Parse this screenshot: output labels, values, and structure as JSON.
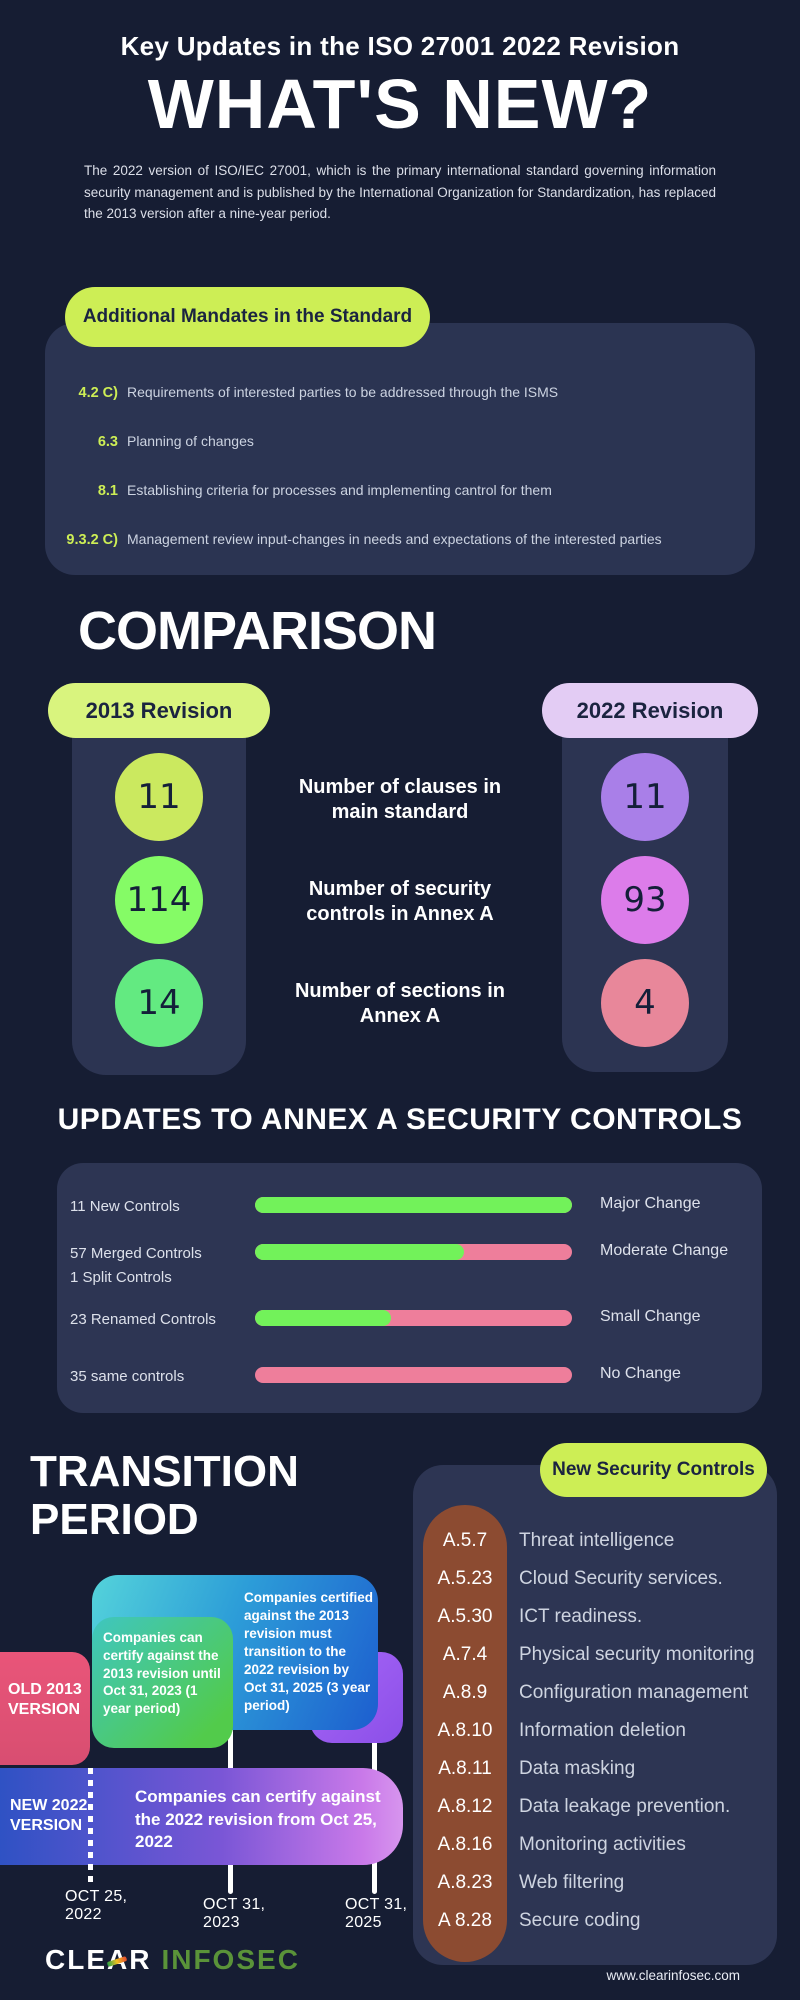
{
  "colors": {
    "background": "#161d33",
    "card": "#2b3452",
    "lime_accent": "#cdee55",
    "pale_lime": "#d9f47e",
    "lavender": "#e3ccf4",
    "bar_green": "#72f25a",
    "bar_pink": "#ee7e9b",
    "brown_column": "#8c4b31",
    "logo_green": "#5a9339"
  },
  "header": {
    "kicker": "Key Updates in the ISO 27001 2022 Revision",
    "title": "WHAT'S NEW?",
    "intro": "The 2022 version of ISO/IEC 27001, which is the primary international standard governing information security management and is published by the International Organization for Standardization, has replaced the 2013 version after a nine-year period."
  },
  "mandates": {
    "heading": "Additional Mandates in the Standard",
    "items": [
      {
        "ref": "4.2 C)",
        "text": "Requirements of interested parties to be addressed through the ISMS"
      },
      {
        "ref": "6.3",
        "text": "Planning of changes"
      },
      {
        "ref": "8.1",
        "text": "Establishing criteria for processes and implementing cantrol for them"
      },
      {
        "ref": "9.3.2 C)",
        "text": "Management review input-changes in needs and expectations of the interested parties"
      }
    ]
  },
  "comparison": {
    "title": "COMPARISON",
    "left_header": "2013 Revision",
    "right_header": "2022 Revision",
    "rows": [
      {
        "metric": "Number of clauses in main standard",
        "value_2013": "11",
        "value_2022": "11"
      },
      {
        "metric": "Number of security controls in Annex A",
        "value_2013": "114",
        "value_2022": "93"
      },
      {
        "metric": "Number of sections in Annex A",
        "value_2013": "14",
        "value_2022": "4"
      }
    ]
  },
  "annex_updates": {
    "title": "UPDATES TO ANNEX A SECURITY CONTROLS",
    "rows": [
      {
        "label": "11 New Controls",
        "label2": "",
        "green_pct": 100,
        "change": "Major Change"
      },
      {
        "label": "57 Merged Controls",
        "label2": "1 Split Controls",
        "green_pct": 66,
        "change": "Moderate Change"
      },
      {
        "label": "23 Renamed Controls",
        "label2": "",
        "green_pct": 43,
        "change": "Small Change"
      },
      {
        "label": "35 same controls",
        "label2": "",
        "green_pct": 0,
        "change": "No Change"
      }
    ]
  },
  "transition": {
    "title_line1": "TRANSITION",
    "title_line2": "PERIOD",
    "old_version_label": "OLD 2013 VERSION",
    "new_version_label": "NEW 2022 VERSION",
    "certify_2013": "Companies  can certify against the 2013 revision until Oct 31, 2023 (1 year period)",
    "transition_2025": "Companies certified against the 2013 revision must transition to the 2022 revision by Oct 31, 2025 (3 year period)",
    "certify_2022": "Companies  can certify against the 2022 revision from Oct 25, 2022",
    "dates": [
      {
        "line1": "OCT 25,",
        "line2": "2022"
      },
      {
        "line1": "OCT 31,",
        "line2": "2023"
      },
      {
        "line1": "OCT 31,",
        "line2": "2025"
      }
    ]
  },
  "new_controls": {
    "heading": "New Security Controls",
    "items": [
      {
        "code": "A.5.7",
        "name": "Threat intelligence"
      },
      {
        "code": "A.5.23",
        "name": "Cloud Security services."
      },
      {
        "code": "A.5.30",
        "name": "ICT readiness."
      },
      {
        "code": "A.7.4",
        "name": "Physical security monitoring"
      },
      {
        "code": "A.8.9",
        "name": "Configuration management"
      },
      {
        "code": "A.8.10",
        "name": "Information deletion"
      },
      {
        "code": "A.8.11",
        "name": "Data masking"
      },
      {
        "code": "A.8.12",
        "name": "Data leakage prevention."
      },
      {
        "code": "A.8.16",
        "name": "Monitoring activities"
      },
      {
        "code": "A.8.23",
        "name": "Web filtering"
      },
      {
        "code": "A 8.28",
        "name": "Secure coding"
      }
    ]
  },
  "footer": {
    "logo_part1": "CLEAR",
    "logo_part2": "INFOSEC",
    "website": "www.clearinfosec.com"
  }
}
